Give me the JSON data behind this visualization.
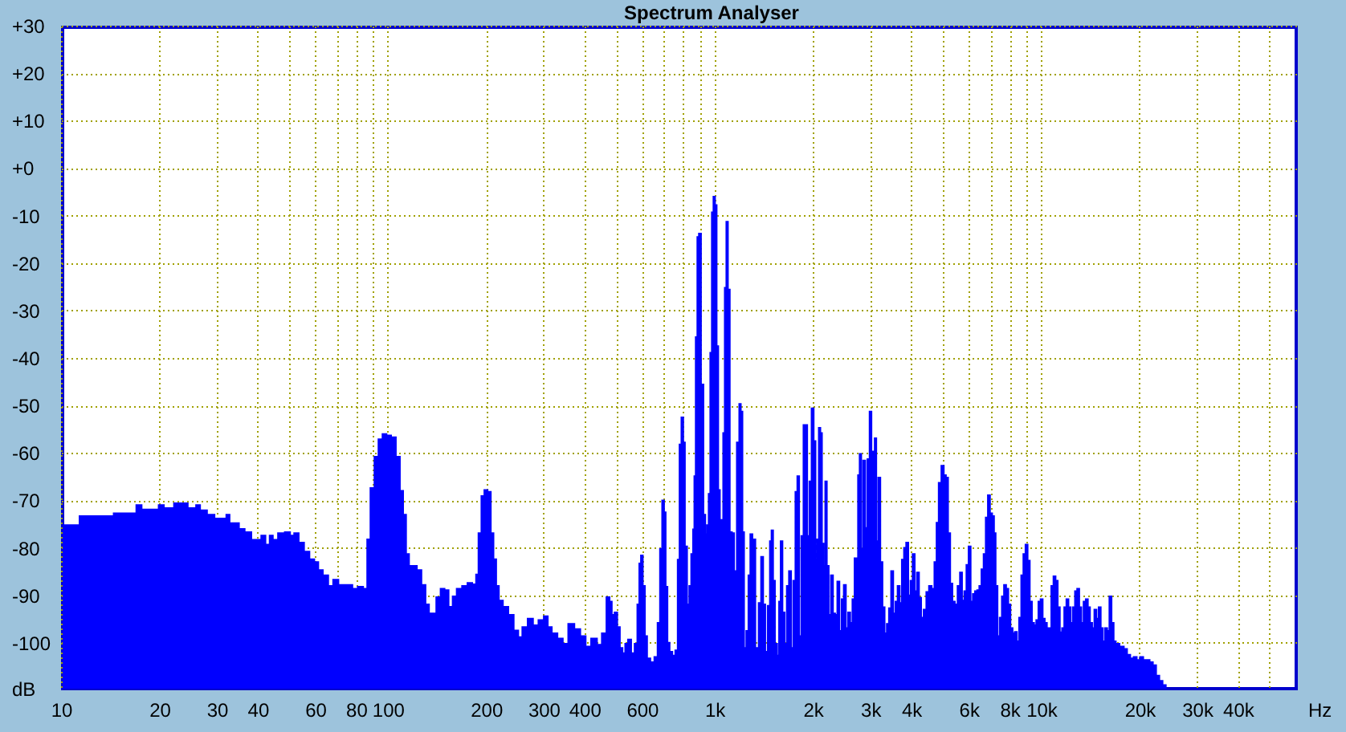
{
  "chart_data": {
    "type": "area",
    "title": "Spectrum Analyser",
    "xlabel": "Hz",
    "ylabel": "dB",
    "log": "x",
    "color": "#0000ff",
    "grid": true,
    "xlim": [
      10,
      61000
    ],
    "ylim": [
      -110,
      30
    ],
    "xticks": [
      10,
      20,
      30,
      40,
      {
        "value": 50,
        "label": null
      },
      60,
      {
        "value": 70,
        "label": null
      },
      80,
      {
        "value": 90,
        "label": null
      },
      100,
      200,
      300,
      400,
      {
        "value": 500,
        "label": null
      },
      600,
      {
        "value": 700,
        "label": null
      },
      {
        "value": 800,
        "label": null
      },
      {
        "value": 900,
        "label": null
      },
      {
        "value": 1000,
        "label": "1k"
      },
      {
        "value": 2000,
        "label": "2k"
      },
      {
        "value": 3000,
        "label": "3k"
      },
      {
        "value": 4000,
        "label": "4k"
      },
      {
        "value": 5000,
        "label": null
      },
      {
        "value": 6000,
        "label": "6k"
      },
      {
        "value": 7000,
        "label": null
      },
      {
        "value": 8000,
        "label": "8k"
      },
      {
        "value": 9000,
        "label": null
      },
      {
        "value": 10000,
        "label": "10k"
      },
      {
        "value": 20000,
        "label": "20k"
      },
      {
        "value": 30000,
        "label": "30k"
      },
      {
        "value": 40000,
        "label": "40k"
      },
      {
        "value": 50000,
        "label": null
      }
    ],
    "yticks": [
      {
        "value": 30,
        "label": "+30"
      },
      {
        "value": 20,
        "label": "+20"
      },
      {
        "value": 10,
        "label": "+10"
      },
      {
        "value": 0,
        "label": "+0"
      },
      -10,
      -20,
      -30,
      -40,
      -50,
      -60,
      -70,
      -80,
      -90,
      -100
    ],
    "x": [
      10,
      11.0,
      11.8,
      14.0,
      15.0,
      16.7,
      17.3,
      18.0,
      19.5,
      20.3,
      21.0,
      23.4,
      25.5,
      26.3,
      27.0,
      29.0,
      30.0,
      31.7,
      32.4,
      33.2,
      34.6,
      35.5,
      37.5,
      39.0,
      40.5,
      41.5,
      43.0,
      44.0,
      45.0,
      47.3,
      49.5,
      51.0,
      52.4,
      54.4,
      56.5,
      58.7,
      60.5,
      62.1,
      64.5,
      67.0,
      69.1,
      72.2,
      76.5,
      79.4,
      82.5,
      85.7,
      87.3,
      89.7,
      92.4,
      94.9,
      97.8,
      100.5,
      104.3,
      107.5,
      110.4,
      112.5,
      115.1,
      117.3,
      120.5,
      125.1,
      128.5,
      132.5,
      135.0,
      138.6,
      142.9,
      147.3,
      151.2,
      155.9,
      160.1,
      165.0,
      172.7,
      178.0,
      184.9,
      187.7,
      191.3,
      195.6,
      199.4,
      204.8,
      208.7,
      212.7,
      216.8,
      220.9,
      229.5,
      238.4,
      247.6,
      254.2,
      262.0,
      274.2,
      282.6,
      295.8,
      304.8,
      313.0,
      322.6,
      338.9,
      348.0,
      365.6,
      379.7,
      397.3,
      409.6,
      428.7,
      445.3,
      458.9,
      474.9,
      480,
      490,
      499,
      509,
      518,
      528,
      538,
      549,
      563,
      576,
      585,
      592,
      599,
      608,
      617,
      627,
      646,
      663,
      676,
      686,
      697,
      705,
      713,
      723,
      735,
      751,
      766,
      777,
      786,
      798,
      807,
      817,
      832,
      842,
      855,
      864,
      871,
      881,
      891,
      901,
      918,
      932,
      943,
      954,
      965,
      976,
      987,
      998,
      1010,
      1021,
      1033,
      1045,
      1057,
      1069,
      1081,
      1093,
      1106,
      1122,
      1140,
      1157,
      1184,
      1197,
      1211,
      1225,
      1239,
      1263,
      1277,
      1297,
      1316,
      1352,
      1378,
      1399,
      1420,
      1441,
      1469,
      1486,
      1503,
      1520,
      1543,
      1567,
      1585,
      1603,
      1627,
      1652,
      1677,
      1703,
      1729,
      1755,
      1782,
      1803,
      1830,
      1858,
      1886,
      1908,
      1937,
      1967,
      1997,
      2027,
      2050,
      2074,
      2097,
      2121,
      2145,
      2170,
      2195,
      2220,
      2254,
      2288,
      2323,
      2358,
      2394,
      2431,
      2468,
      2506,
      2544,
      2583,
      2623,
      2663,
      2703,
      2734,
      2765,
      2797,
      2829,
      2872,
      2916,
      2960,
      3006,
      3040,
      3075,
      3110,
      3146,
      3194,
      3243,
      3292,
      3343,
      3393,
      3445,
      3498,
      3552,
      3606,
      3661,
      3716,
      3773,
      3831,
      3889,
      3949,
      4009,
      4070,
      4132,
      4195,
      4259,
      4324,
      4407,
      4491,
      4577,
      4665,
      4754,
      4809,
      4901,
      4994,
      5072,
      5148,
      5227,
      5307,
      5389,
      5492,
      5597,
      5682,
      5768,
      5857,
      5947,
      6037,
      6129,
      6222,
      6317,
      6414,
      6511,
      6611,
      6712,
      6815,
      6918,
      7023,
      7131,
      7213,
      7295,
      7406,
      7520,
      7634,
      7751,
      7870,
      7990,
      8113,
      8235,
      8361,
      8490,
      8620,
      8750,
      8882,
      9018,
      9157,
      9297,
      9440,
      9581,
      9727,
      9876,
      10030,
      10180,
      10330,
      10490,
      10650,
      10820,
      10980,
      11150,
      11320,
      11490,
      11670,
      11850,
      12030,
      12210,
      12400,
      12590,
      12780,
      12980,
      13170,
      13370,
      13580,
      13790,
      14000,
      14210,
      14430,
      14650,
      14880,
      15100,
      15330,
      15560,
      15800,
      16040,
      16290,
      16540,
      16790,
      17040,
      17700,
      18110,
      18520,
      18950,
      19390,
      19830,
      20290,
      20760,
      21230,
      21720,
      22220,
      22730,
      23250,
      23790,
      24340
    ],
    "values": [
      -75.2,
      -75.2,
      -73.3,
      -73.3,
      -72.7,
      -72.7,
      -71.0,
      -71.9,
      -71.9,
      -71.0,
      -71.6,
      -70.6,
      -71.6,
      -71.0,
      -72.1,
      -73.0,
      -73.8,
      -73.8,
      -73.0,
      -74.8,
      -74.8,
      -76.0,
      -76.7,
      -78.3,
      -78.3,
      -77.4,
      -79.3,
      -77.4,
      -78.3,
      -76.9,
      -76.7,
      -77.4,
      -76.9,
      -78.9,
      -80.8,
      -82.4,
      -83.0,
      -84.7,
      -85.8,
      -88.0,
      -86.7,
      -87.8,
      -87.8,
      -88.6,
      -88.2,
      -88.6,
      -78.2,
      -67.4,
      -60.8,
      -57.1,
      -56.0,
      -56.3,
      -56.7,
      -60.8,
      -68.0,
      -73.0,
      -81.3,
      -83.8,
      -83.8,
      -84.7,
      -87.8,
      -91.9,
      -93.8,
      -93.8,
      -90.4,
      -88.6,
      -88.9,
      -92.4,
      -90.2,
      -88.6,
      -88.0,
      -87.4,
      -87.7,
      -85.6,
      -76.9,
      -69.1,
      -67.8,
      -68.2,
      -76.9,
      -82.4,
      -88.0,
      -91.1,
      -92.4,
      -94.1,
      -97.4,
      -98.8,
      -96.7,
      -94.9,
      -96.3,
      -95.2,
      -94.4,
      -96.7,
      -98.0,
      -99.1,
      -100.2,
      -96.0,
      -97.1,
      -98.6,
      -100.8,
      -99.1,
      -100.4,
      -98.0,
      -90.4,
      -91.3,
      -94.1,
      -93.6,
      -96.7,
      -101.1,
      -102.2,
      -100.2,
      -99.3,
      -102.2,
      -100.2,
      -91.9,
      -83.3,
      -81.6,
      -88.0,
      -98.6,
      -103.3,
      -104.1,
      -103.0,
      -95.8,
      -80.2,
      -70.0,
      -72.5,
      -88.2,
      -100.0,
      -101.9,
      -102.7,
      -101.6,
      -82.5,
      -58.2,
      -52.5,
      -57.8,
      -79.7,
      -91.9,
      -88.0,
      -81.3,
      -76.1,
      -64.9,
      -35.6,
      -14.5,
      -13.8,
      -45.6,
      -73.0,
      -77.1,
      -75.2,
      -68.6,
      -38.9,
      -9.3,
      -6.0,
      -7.8,
      -37.5,
      -67.8,
      -74.1,
      -76.9,
      -55.8,
      -25.2,
      -11.3,
      -25.6,
      -76.7,
      -76.9,
      -84.9,
      -57.8,
      -49.7,
      -51.3,
      -76.7,
      -101.1,
      -97.5,
      -85.8,
      -77.1,
      -78.2,
      -101.1,
      -91.6,
      -81.9,
      -91.9,
      -101.9,
      -92.2,
      -78.6,
      -76.3,
      -86.9,
      -100.2,
      -102.7,
      -91.3,
      -78.6,
      -93.6,
      -100.2,
      -88.0,
      -84.9,
      -101.1,
      -86.9,
      -68.2,
      -64.9,
      -98.6,
      -77.5,
      -54.1,
      -54.1,
      -77.5,
      -66.0,
      -50.6,
      -57.5,
      -82.5,
      -78.2,
      -54.7,
      -55.8,
      -79.1,
      -83.8,
      -66.0,
      -83.8,
      -94.1,
      -85.8,
      -93.8,
      -94.1,
      -87.1,
      -97.5,
      -90.8,
      -87.8,
      -96.9,
      -93.6,
      -95.8,
      -90.8,
      -82.2,
      -84.9,
      -64.7,
      -60.2,
      -80.2,
      -61.6,
      -75.8,
      -61.3,
      -51.3,
      -75.8,
      -59.7,
      -56.9,
      -78.6,
      -65.2,
      -83.0,
      -92.5,
      -98.0,
      -96.0,
      -92.7,
      -84.9,
      -93.8,
      -91.3,
      -88.0,
      -91.6,
      -82.5,
      -80.0,
      -78.9,
      -90.0,
      -86.9,
      -81.3,
      -89.1,
      -85.2,
      -90.5,
      -94.7,
      -93.0,
      -89.3,
      -88.0,
      -88.6,
      -83.0,
      -74.7,
      -66.3,
      -62.7,
      -64.7,
      -65.2,
      -76.9,
      -87.5,
      -91.3,
      -91.9,
      -88.0,
      -85.2,
      -91.1,
      -89.1,
      -83.6,
      -79.7,
      -91.3,
      -89.7,
      -89.1,
      -88.9,
      -88.0,
      -84.5,
      -81.3,
      -73.6,
      -68.9,
      -72.7,
      -73.3,
      -76.9,
      -88.0,
      -98.6,
      -94.7,
      -90.2,
      -87.8,
      -88.6,
      -91.9,
      -96.9,
      -98.0,
      -97.7,
      -99.7,
      -94.7,
      -85.8,
      -81.3,
      -79.3,
      -82.7,
      -91.3,
      -95.8,
      -96.3,
      -95.2,
      -91.3,
      -90.8,
      -94.9,
      -95.8,
      -96.9,
      -96.9,
      -88.0,
      -86.0,
      -86.9,
      -92.5,
      -97.8,
      -96.9,
      -92.5,
      -90.8,
      -92.5,
      -95.8,
      -92.5,
      -89.1,
      -88.6,
      -92.5,
      -95.8,
      -91.3,
      -90.8,
      -92.5,
      -95.8,
      -96.9,
      -93.0,
      -94.9,
      -92.5,
      -96.9,
      -99.7,
      -96.9,
      -97.5,
      -90.2,
      -95.8,
      -99.7,
      -100.2,
      -100.8,
      -101.3,
      -102.5,
      -103.3,
      -103.0,
      -103.6,
      -103.0,
      -103.6,
      -103.6,
      -104.1,
      -104.7,
      -106.9,
      -108.0,
      -108.9,
      -110.0
    ]
  }
}
